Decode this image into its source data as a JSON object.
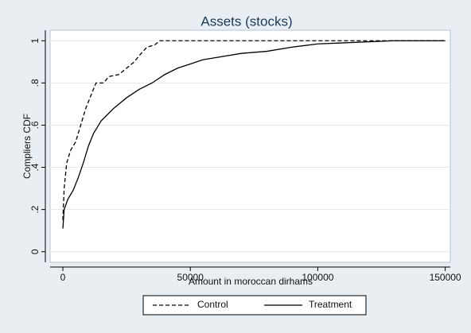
{
  "chart_data": {
    "type": "line",
    "title": "Assets (stocks)",
    "x_label": "Amount in moroccan dirhams",
    "y_label": "Compliers CDF",
    "xlim": [
      -5000,
      152000
    ],
    "ylim": [
      -0.05,
      1.05
    ],
    "xticks": [
      0,
      50000,
      100000,
      150000
    ],
    "yticks": [
      0,
      {
        "value": 0.2,
        "label": ".2"
      },
      {
        "value": 0.4,
        "label": ".4"
      },
      {
        "value": 0.6,
        "label": ".6"
      },
      {
        "value": 0.8,
        "label": ".8"
      },
      1
    ],
    "grid": true,
    "legend": "bottom",
    "series": [
      {
        "name": "Control",
        "color": "#000000",
        "style": "dashed",
        "x": [
          0,
          500,
          1500,
          3000,
          5000,
          7000,
          9000,
          11000,
          13000,
          16000,
          18000,
          22000,
          25000,
          28000,
          30000,
          33000,
          36000,
          38000,
          150000
        ],
        "values": [
          0.15,
          0.3,
          0.42,
          0.48,
          0.52,
          0.6,
          0.68,
          0.74,
          0.8,
          0.8,
          0.83,
          0.84,
          0.87,
          0.9,
          0.93,
          0.97,
          0.98,
          1.0,
          1.0
        ]
      },
      {
        "name": "Treatment",
        "color": "#000000",
        "style": "solid",
        "x": [
          0,
          500,
          2000,
          4000,
          6000,
          8000,
          10000,
          12000,
          15000,
          20000,
          25000,
          30000,
          35000,
          40000,
          45000,
          50000,
          55000,
          60000,
          70000,
          80000,
          90000,
          100000,
          110000,
          120000,
          130000,
          150000
        ],
        "values": [
          0.11,
          0.2,
          0.25,
          0.29,
          0.35,
          0.42,
          0.5,
          0.56,
          0.62,
          0.68,
          0.73,
          0.77,
          0.8,
          0.84,
          0.87,
          0.89,
          0.91,
          0.92,
          0.94,
          0.95,
          0.97,
          0.985,
          0.99,
          0.995,
          1.0,
          1.0
        ]
      }
    ]
  }
}
